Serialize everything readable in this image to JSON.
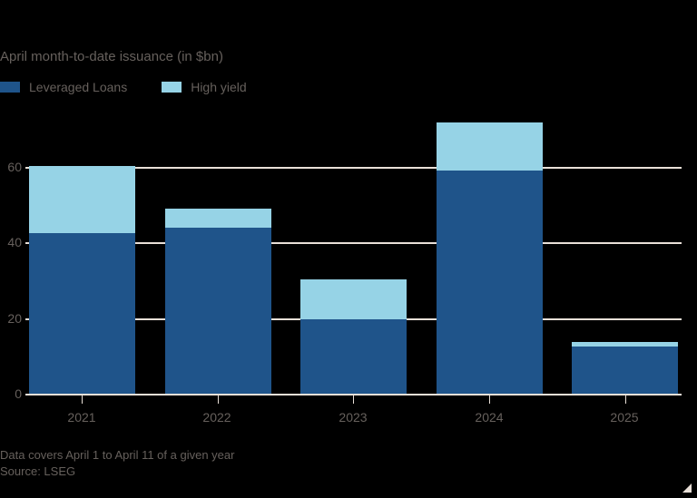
{
  "chart_data": {
    "type": "bar",
    "stacked": true,
    "title": "April month-to-date issuance (in $bn)",
    "categories": [
      "2021",
      "2022",
      "2023",
      "2024",
      "2025"
    ],
    "series": [
      {
        "name": "Leveraged Loans",
        "color": "#1f548a",
        "values": [
          42.4,
          44.0,
          19.7,
          59.0,
          12.4
        ]
      },
      {
        "name": "High yield",
        "color": "#96d3e6",
        "values": [
          17.8,
          5.0,
          10.5,
          12.7,
          1.3
        ]
      }
    ],
    "xlabel": "",
    "ylabel": "",
    "ylim": [
      0,
      72
    ],
    "yticks": [
      0,
      20,
      40,
      60
    ],
    "grid": true,
    "legend_position": "top-left",
    "annotations": [
      "Data covers April 1 to April 11 of a given year",
      "Source: LSEG"
    ]
  },
  "labels": {
    "title": "April month-to-date issuance (in $bn)",
    "legend": [
      "Leveraged Loans",
      "High yield"
    ],
    "yticks": [
      "0",
      "20",
      "40",
      "60"
    ],
    "xticks": [
      "2021",
      "2022",
      "2023",
      "2024",
      "2025"
    ],
    "note": "Data covers April 1 to April 11 of a given year",
    "source": "Source: LSEG"
  },
  "colors": {
    "loans": "#1f548a",
    "high_yield": "#96d3e6",
    "grid": "#e9e0d8",
    "text": "#66605c",
    "background": "#000000"
  }
}
